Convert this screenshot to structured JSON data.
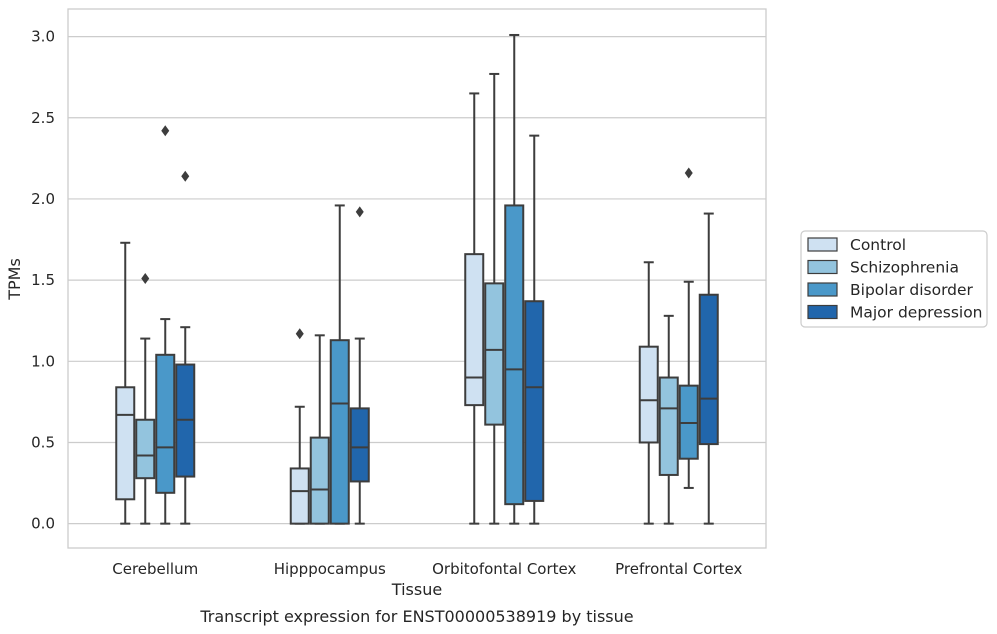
{
  "chart_data": {
    "type": "box",
    "caption": "Transcript expression for ENST00000538919 by tissue",
    "xlabel": "Tissue",
    "ylabel": "TPMs",
    "ylim": [
      -0.15,
      3.17
    ],
    "yticks": [
      "0.0",
      "0.5",
      "1.0",
      "1.5",
      "2.0",
      "2.5",
      "3.0"
    ],
    "grid": "horizontal",
    "legend_position": "right",
    "categories": [
      "Cerebellum",
      "Hipppocampus",
      "Orbitofontal Cortex",
      "Prefrontal Cortex"
    ],
    "series": [
      {
        "name": "Control",
        "color": "#cfe1f2",
        "boxes": [
          {
            "whisker_low": 0.0,
            "q1": 0.15,
            "median": 0.67,
            "q3": 0.84,
            "whisker_high": 1.73,
            "outliers": []
          },
          {
            "whisker_low": 0.0,
            "q1": 0.0,
            "median": 0.2,
            "q3": 0.34,
            "whisker_high": 0.72,
            "outliers": [
              1.17
            ]
          },
          {
            "whisker_low": 0.0,
            "q1": 0.73,
            "median": 0.9,
            "q3": 1.66,
            "whisker_high": 2.65,
            "outliers": []
          },
          {
            "whisker_low": 0.0,
            "q1": 0.5,
            "median": 0.76,
            "q3": 1.09,
            "whisker_high": 1.61,
            "outliers": []
          }
        ]
      },
      {
        "name": "Schizophrenia",
        "color": "#93c4de",
        "boxes": [
          {
            "whisker_low": 0.0,
            "q1": 0.28,
            "median": 0.42,
            "q3": 0.64,
            "whisker_high": 1.14,
            "outliers": [
              1.51
            ]
          },
          {
            "whisker_low": 0.0,
            "q1": 0.0,
            "median": 0.21,
            "q3": 0.53,
            "whisker_high": 1.16,
            "outliers": []
          },
          {
            "whisker_low": 0.0,
            "q1": 0.61,
            "median": 1.07,
            "q3": 1.48,
            "whisker_high": 2.77,
            "outliers": []
          },
          {
            "whisker_low": 0.0,
            "q1": 0.3,
            "median": 0.71,
            "q3": 0.9,
            "whisker_high": 1.28,
            "outliers": []
          }
        ]
      },
      {
        "name": "Bipolar disorder",
        "color": "#4a98c9",
        "boxes": [
          {
            "whisker_low": 0.0,
            "q1": 0.19,
            "median": 0.47,
            "q3": 1.04,
            "whisker_high": 1.26,
            "outliers": [
              2.42
            ]
          },
          {
            "whisker_low": 0.0,
            "q1": 0.0,
            "median": 0.74,
            "q3": 1.13,
            "whisker_high": 1.96,
            "outliers": []
          },
          {
            "whisker_low": 0.0,
            "q1": 0.12,
            "median": 0.95,
            "q3": 1.96,
            "whisker_high": 3.01,
            "outliers": []
          },
          {
            "whisker_low": 0.22,
            "q1": 0.4,
            "median": 0.62,
            "q3": 0.85,
            "whisker_high": 1.49,
            "outliers": [
              2.16
            ]
          }
        ]
      },
      {
        "name": "Major depression",
        "color": "#2166ac",
        "boxes": [
          {
            "whisker_low": 0.0,
            "q1": 0.29,
            "median": 0.64,
            "q3": 0.98,
            "whisker_high": 1.21,
            "outliers": [
              2.14
            ]
          },
          {
            "whisker_low": 0.0,
            "q1": 0.26,
            "median": 0.47,
            "q3": 0.71,
            "whisker_high": 1.14,
            "outliers": [
              1.92
            ]
          },
          {
            "whisker_low": 0.0,
            "q1": 0.14,
            "median": 0.84,
            "q3": 1.37,
            "whisker_high": 2.39,
            "outliers": []
          },
          {
            "whisker_low": 0.0,
            "q1": 0.49,
            "median": 0.77,
            "q3": 1.41,
            "whisker_high": 1.91,
            "outliers": []
          }
        ]
      }
    ]
  }
}
